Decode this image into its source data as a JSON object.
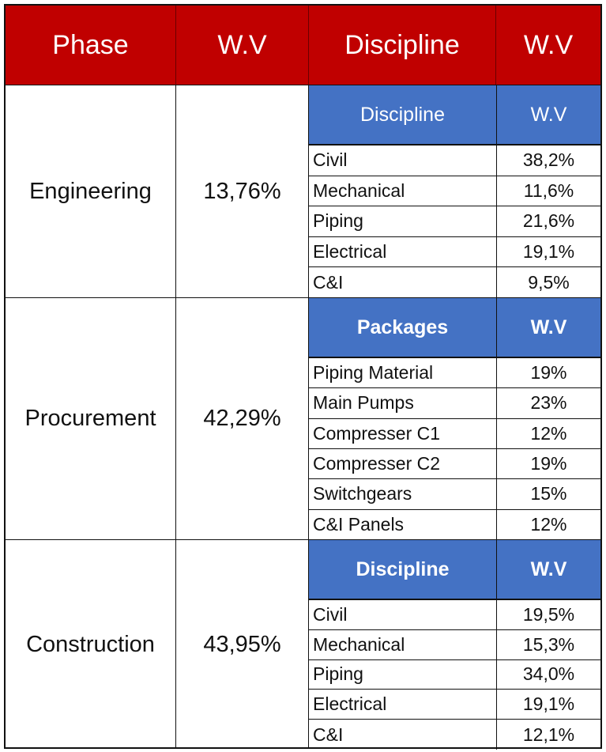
{
  "header": {
    "phase": "Phase",
    "phase_wv": "W.V",
    "discipline": "Discipline",
    "discipline_wv": "W.V"
  },
  "colors": {
    "header_bg": "#c00000",
    "subheader_bg": "#4472c4"
  },
  "sections": [
    {
      "phase": "Engineering",
      "wv": "13,76%",
      "sub_name": "Discipline",
      "sub_wv": "W.V",
      "sub_bold": false,
      "rows": [
        {
          "name": "Civil",
          "wv": "38,2%"
        },
        {
          "name": "Mechanical",
          "wv": "11,6%"
        },
        {
          "name": "Piping",
          "wv": "21,6%"
        },
        {
          "name": "Electrical",
          "wv": "19,1%"
        },
        {
          "name": "C&I",
          "wv": "9,5%"
        }
      ]
    },
    {
      "phase": "Procurement",
      "wv": "42,29%",
      "sub_name": "Packages",
      "sub_wv": "W.V",
      "sub_bold": true,
      "rows": [
        {
          "name": "Piping Material",
          "wv": "19%"
        },
        {
          "name": "Main Pumps",
          "wv": "23%"
        },
        {
          "name": "Compresser C1",
          "wv": "12%"
        },
        {
          "name": "Compresser C2",
          "wv": "19%"
        },
        {
          "name": "Switchgears",
          "wv": "15%"
        },
        {
          "name": "C&I Panels",
          "wv": "12%"
        }
      ]
    },
    {
      "phase": "Construction",
      "wv": "43,95%",
      "sub_name": "Discipline",
      "sub_wv": "W.V",
      "sub_bold": true,
      "rows": [
        {
          "name": "Civil",
          "wv": "19,5%"
        },
        {
          "name": "Mechanical",
          "wv": "15,3%"
        },
        {
          "name": "Piping",
          "wv": "34,0%"
        },
        {
          "name": "Electrical",
          "wv": "19,1%"
        },
        {
          "name": "C&I",
          "wv": "12,1%"
        }
      ]
    }
  ]
}
